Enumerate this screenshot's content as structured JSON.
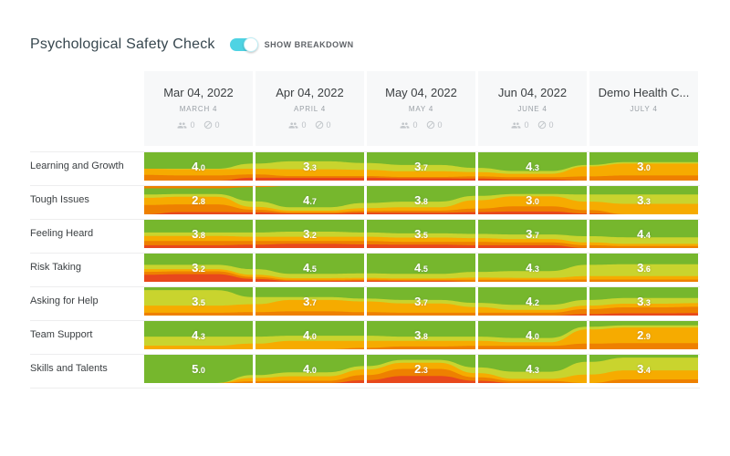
{
  "page": {
    "title": "Psychological Safety Check",
    "toggle_label": "SHOW BREAKDOWN",
    "toggle_state": "on"
  },
  "colors": {
    "green": "#76b72d",
    "yellow_green": "#c9d42e",
    "amber": "#f6ab00",
    "orange": "#ee8000",
    "red": "#e8481c",
    "toggle": "#4ed3e3",
    "header_bg": "#f7f8f9",
    "divider": "#ededee",
    "text_dark": "#3c4043",
    "text_muted": "#9aa0a6"
  },
  "columns": [
    {
      "title": "Mar 04, 2022",
      "subtitle": "MARCH 4",
      "participants": "0",
      "skipped": "0",
      "has_counts": true
    },
    {
      "title": "Apr 04, 2022",
      "subtitle": "APRIL 4",
      "participants": "0",
      "skipped": "0",
      "has_counts": true
    },
    {
      "title": "May 04, 2022",
      "subtitle": "MAY 4",
      "participants": "0",
      "skipped": "0",
      "has_counts": true
    },
    {
      "title": "Jun 04, 2022",
      "subtitle": "JUNE 4",
      "participants": "0",
      "skipped": "0",
      "has_counts": true
    },
    {
      "title": "Demo Health C...",
      "subtitle": "JULY 4",
      "has_counts": false
    }
  ],
  "chart_data": {
    "type": "table",
    "description": "Grid of per-question streamgraph cells; each cell shows an average score 0-5 over a color-banded answer distribution (green=best, red=worst).",
    "columns": [
      "Mar 04, 2022",
      "Apr 04, 2022",
      "May 04, 2022",
      "Jun 04, 2022",
      "Demo Health C..."
    ],
    "rows": [
      "Learning and Growth",
      "Tough Issues",
      "Feeling Heard",
      "Risk Taking",
      "Asking for Help",
      "Team Support",
      "Skills and Talents"
    ],
    "scores": [
      [
        4.0,
        3.3,
        3.7,
        4.3,
        3.0
      ],
      [
        2.8,
        4.7,
        3.8,
        3.0,
        3.3
      ],
      [
        3.8,
        3.2,
        3.5,
        3.7,
        4.4
      ],
      [
        3.2,
        4.5,
        4.5,
        4.3,
        3.6
      ],
      [
        3.5,
        3.7,
        3.7,
        4.2,
        3.3
      ],
      [
        4.3,
        4.0,
        3.8,
        4.0,
        2.9
      ],
      [
        5.0,
        4.0,
        2.3,
        4.3,
        3.4
      ]
    ],
    "score_range": [
      0,
      5
    ],
    "band_order": [
      "orange_top",
      "green",
      "yellow_green",
      "amber",
      "orange",
      "red"
    ],
    "streams": [
      [
        [
          0,
          58,
          0,
          22,
          20,
          0
        ],
        [
          0,
          58,
          2,
          22,
          18,
          0
        ],
        [
          0,
          40,
          18,
          20,
          12,
          10
        ],
        [
          0,
          32,
          28,
          24,
          6,
          10
        ],
        [
          0,
          38,
          24,
          22,
          6,
          10
        ],
        [
          0,
          45,
          22,
          20,
          5,
          8
        ],
        [
          0,
          55,
          15,
          15,
          8,
          7
        ],
        [
          0,
          66,
          10,
          12,
          8,
          4
        ],
        [
          0,
          45,
          5,
          35,
          15,
          0
        ],
        [
          0,
          35,
          5,
          42,
          18,
          0
        ],
        [
          0,
          35,
          5,
          42,
          18,
          0
        ]
      ],
      [
        [
          8,
          22,
          12,
          25,
          33,
          0
        ],
        [
          8,
          20,
          10,
          27,
          27,
          8
        ],
        [
          4,
          50,
          20,
          10,
          9,
          7
        ],
        [
          0,
          75,
          12,
          6,
          4,
          3
        ],
        [
          0,
          60,
          18,
          10,
          6,
          6
        ],
        [
          0,
          55,
          20,
          12,
          7,
          6
        ],
        [
          0,
          35,
          15,
          30,
          12,
          8
        ],
        [
          0,
          28,
          8,
          36,
          18,
          10
        ],
        [
          0,
          30,
          25,
          30,
          12,
          3
        ],
        [
          0,
          30,
          33,
          37,
          0,
          0
        ],
        [
          0,
          30,
          33,
          37,
          0,
          0
        ]
      ],
      [
        [
          0,
          45,
          12,
          18,
          15,
          10
        ],
        [
          0,
          45,
          12,
          18,
          15,
          10
        ],
        [
          0,
          45,
          15,
          15,
          13,
          12
        ],
        [
          0,
          42,
          18,
          15,
          10,
          15
        ],
        [
          0,
          45,
          15,
          15,
          12,
          13
        ],
        [
          0,
          48,
          15,
          15,
          10,
          12
        ],
        [
          0,
          50,
          15,
          13,
          12,
          10
        ],
        [
          0,
          52,
          16,
          12,
          10,
          10
        ],
        [
          0,
          58,
          22,
          10,
          10,
          0
        ],
        [
          0,
          62,
          23,
          8,
          7,
          0
        ],
        [
          0,
          62,
          23,
          8,
          7,
          0
        ]
      ],
      [
        [
          0,
          40,
          15,
          10,
          10,
          25
        ],
        [
          0,
          40,
          15,
          8,
          10,
          27
        ],
        [
          0,
          55,
          20,
          8,
          7,
          10
        ],
        [
          0,
          72,
          15,
          6,
          4,
          3
        ],
        [
          0,
          70,
          16,
          6,
          4,
          4
        ],
        [
          0,
          72,
          16,
          5,
          4,
          3
        ],
        [
          0,
          65,
          20,
          8,
          7,
          0
        ],
        [
          0,
          62,
          24,
          7,
          7,
          0
        ],
        [
          0,
          40,
          40,
          12,
          8,
          0
        ],
        [
          0,
          38,
          42,
          12,
          8,
          0
        ],
        [
          0,
          38,
          42,
          12,
          8,
          0
        ]
      ],
      [
        [
          0,
          10,
          55,
          25,
          10,
          0
        ],
        [
          0,
          10,
          55,
          25,
          10,
          0
        ],
        [
          0,
          35,
          25,
          28,
          12,
          0
        ],
        [
          0,
          35,
          10,
          40,
          15,
          0
        ],
        [
          0,
          40,
          10,
          38,
          12,
          0
        ],
        [
          0,
          45,
          12,
          33,
          10,
          0
        ],
        [
          0,
          55,
          15,
          20,
          10,
          0
        ],
        [
          0,
          62,
          18,
          10,
          10,
          0
        ],
        [
          0,
          45,
          20,
          12,
          18,
          5
        ],
        [
          0,
          38,
          20,
          13,
          21,
          8
        ],
        [
          0,
          38,
          18,
          13,
          22,
          9
        ]
      ],
      [
        [
          0,
          55,
          32,
          13,
          0,
          0
        ],
        [
          0,
          55,
          32,
          13,
          0,
          0
        ],
        [
          0,
          55,
          25,
          20,
          0,
          0
        ],
        [
          0,
          52,
          18,
          30,
          0,
          0
        ],
        [
          0,
          52,
          18,
          25,
          5,
          0
        ],
        [
          0,
          55,
          15,
          20,
          10,
          0
        ],
        [
          0,
          55,
          15,
          18,
          12,
          0
        ],
        [
          0,
          60,
          15,
          13,
          12,
          0
        ],
        [
          0,
          20,
          10,
          50,
          20,
          0
        ],
        [
          0,
          15,
          8,
          55,
          22,
          0
        ],
        [
          0,
          15,
          8,
          55,
          22,
          0
        ]
      ],
      [
        [
          0,
          100,
          0,
          0,
          0,
          0
        ],
        [
          0,
          100,
          0,
          0,
          0,
          0
        ],
        [
          0,
          72,
          10,
          12,
          6,
          0
        ],
        [
          0,
          62,
          14,
          16,
          8,
          0
        ],
        [
          0,
          40,
          12,
          20,
          18,
          10
        ],
        [
          0,
          18,
          10,
          22,
          25,
          25
        ],
        [
          0,
          45,
          20,
          15,
          12,
          8
        ],
        [
          0,
          60,
          25,
          8,
          7,
          0
        ],
        [
          0,
          25,
          45,
          30,
          0,
          0
        ],
        [
          0,
          10,
          45,
          32,
          13,
          0
        ],
        [
          0,
          10,
          45,
          32,
          13,
          0
        ]
      ]
    ]
  }
}
